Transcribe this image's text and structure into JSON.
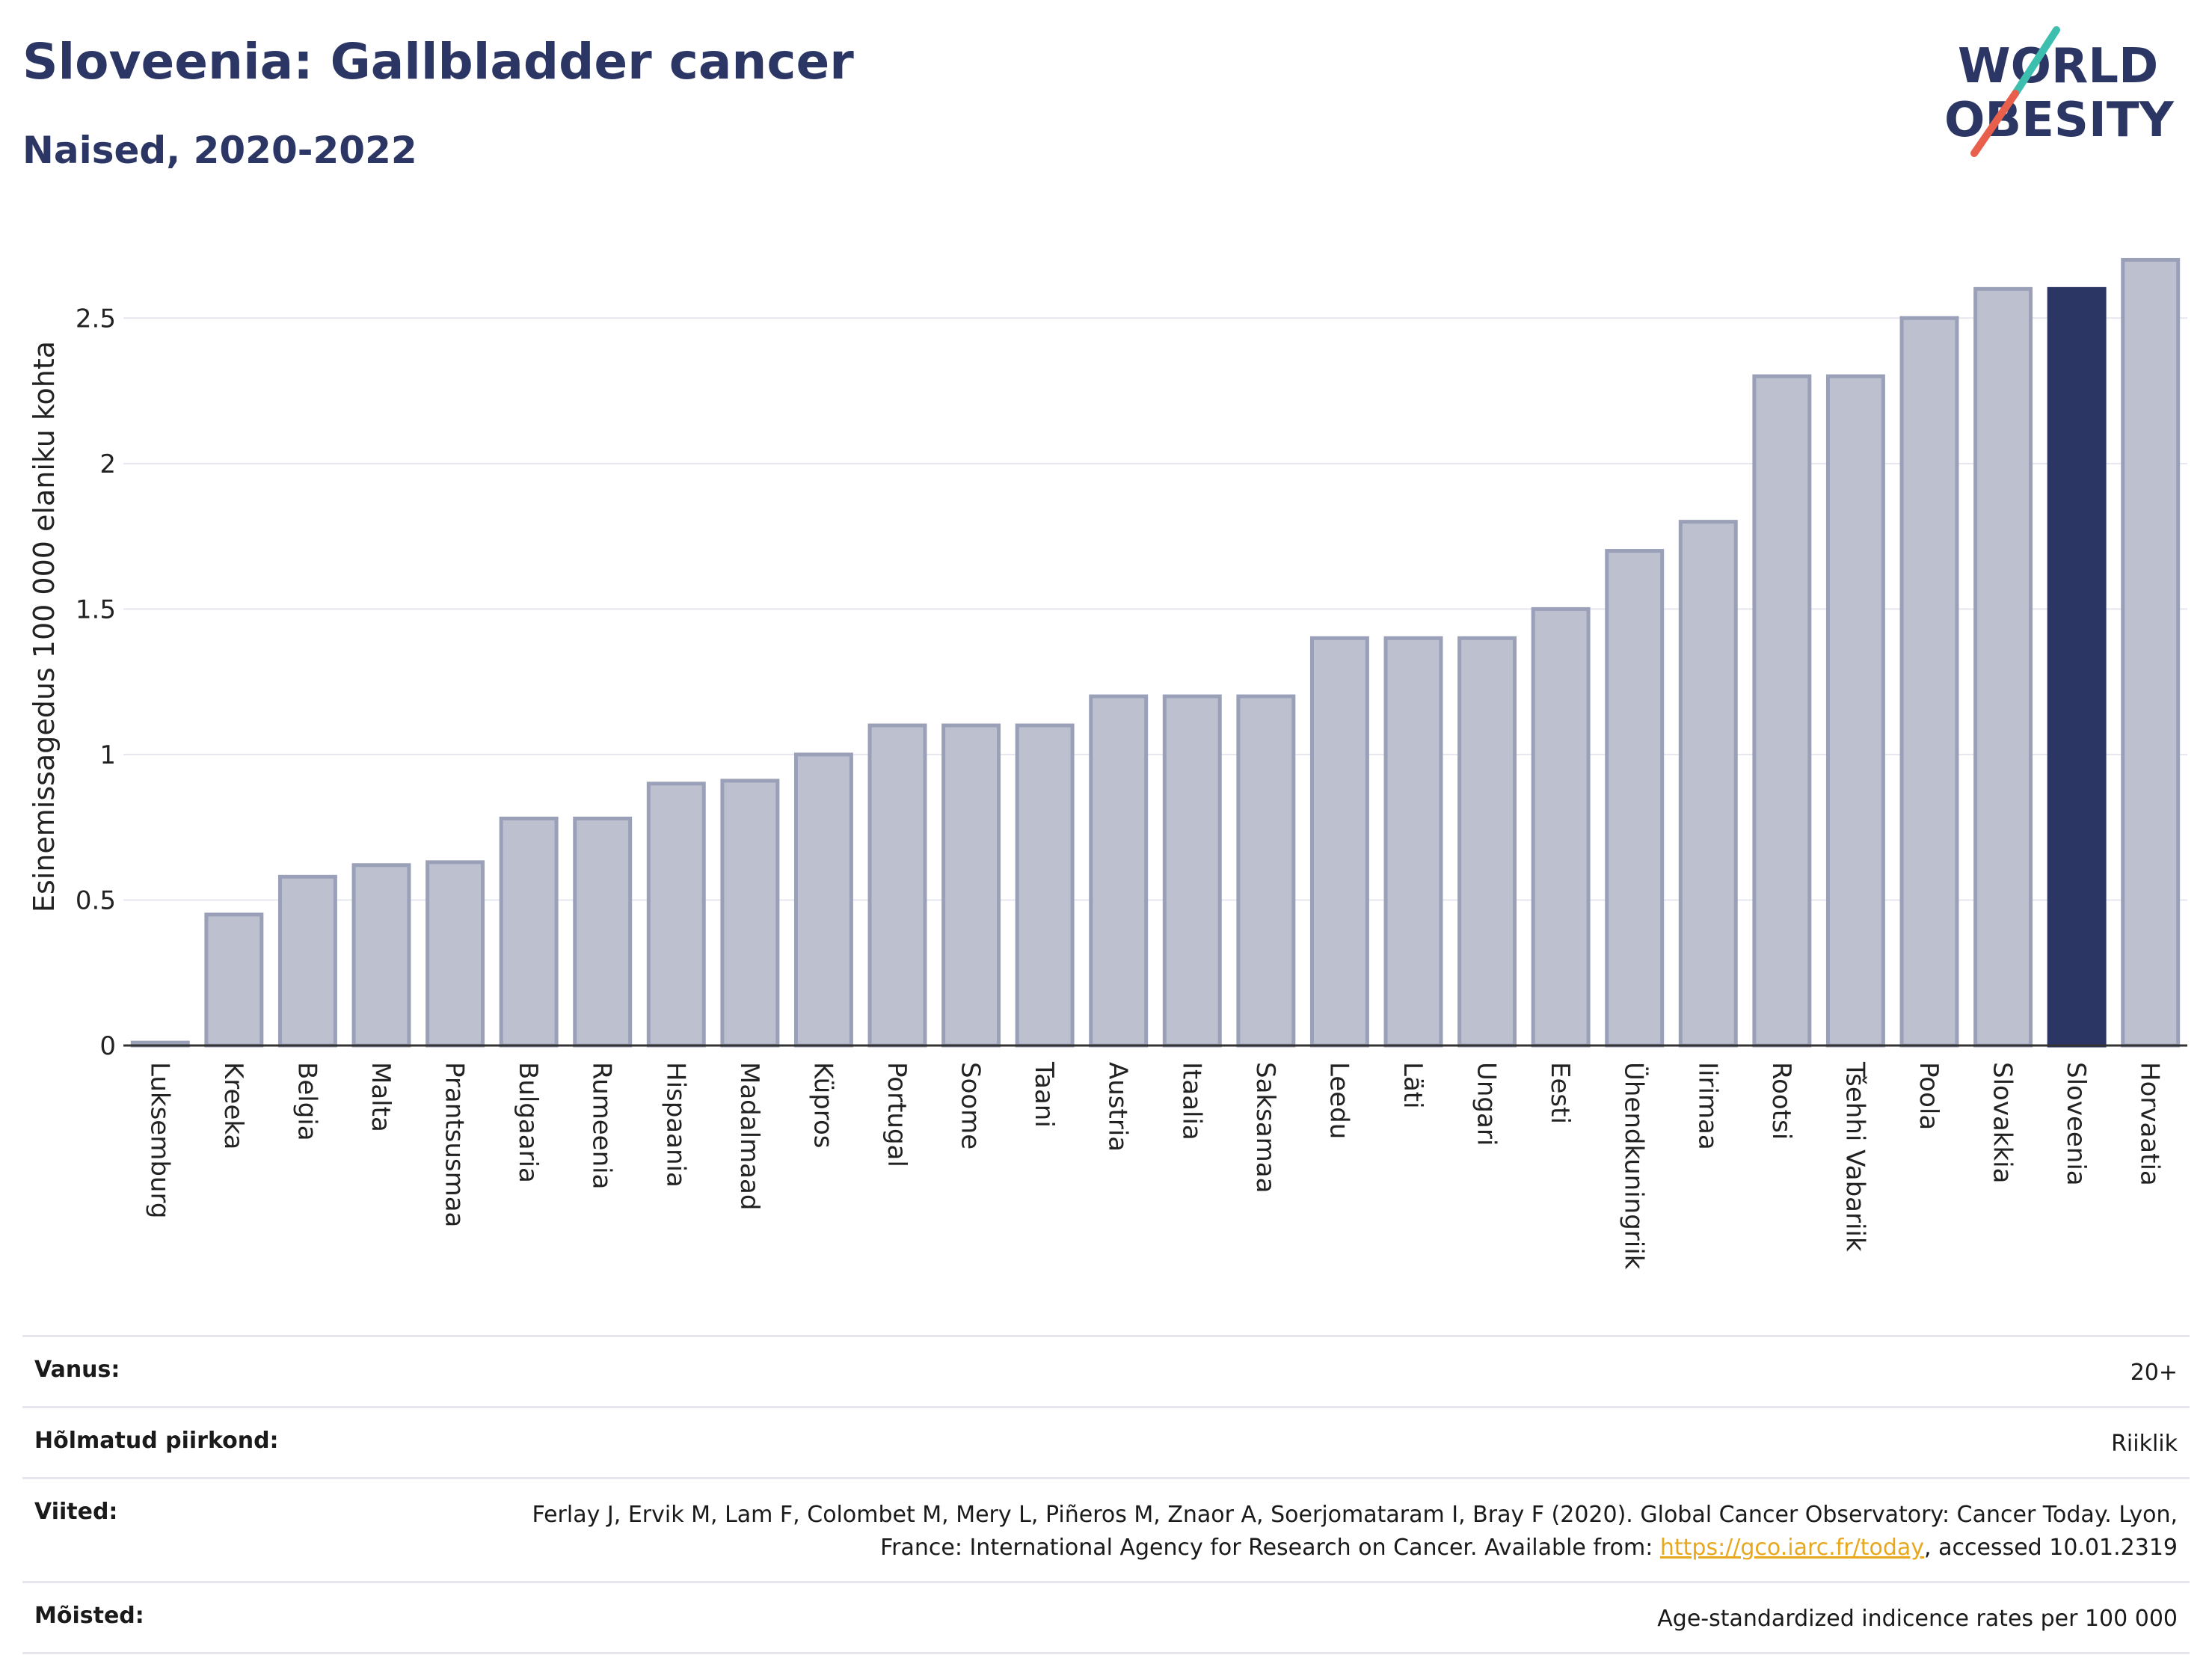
{
  "header": {
    "title": "Sloveenia: Gallbladder cancer",
    "subtitle": "Naised, 2020-2022"
  },
  "logo": {
    "line1": "WORLD",
    "line2": "OBESITY",
    "colors": {
      "text": "#2b3664",
      "slash_teal": "#3dbfb0",
      "slash_red": "#e8604c"
    }
  },
  "chart_data": {
    "type": "bar",
    "ylabel": "Esinemissagedus 100 000 elaniku kohta",
    "ylim": [
      0,
      2.75
    ],
    "yticks": [
      0,
      0.5,
      1,
      1.5,
      2,
      2.5
    ],
    "ytick_labels": [
      "0",
      "0.5",
      "1",
      "1.5",
      "2",
      "2.5"
    ],
    "grid": true,
    "highlight": "Sloveenia",
    "colors": {
      "bar": "#bcc0cf",
      "bar_edge": "#9aa0b8",
      "highlight": "#2b3664"
    },
    "categories": [
      "Luksemburg",
      "Kreeka",
      "Belgia",
      "Malta",
      "Prantsusmaa",
      "Bulgaaria",
      "Rumeenia",
      "Hispaania",
      "Madalmaad",
      "Küpros",
      "Portugal",
      "Soome",
      "Taani",
      "Austria",
      "Itaalia",
      "Saksamaa",
      "Leedu",
      "Läti",
      "Ungari",
      "Eesti",
      "Ühendkuningriik",
      "Iirimaa",
      "Rootsi",
      "Tšehhi Vabariik",
      "Poola",
      "Slovakkia",
      "Sloveenia",
      "Horvaatia"
    ],
    "values": [
      0.01,
      0.45,
      0.58,
      0.62,
      0.63,
      0.78,
      0.78,
      0.9,
      0.91,
      1.0,
      1.1,
      1.1,
      1.1,
      1.2,
      1.2,
      1.2,
      1.4,
      1.4,
      1.4,
      1.5,
      1.7,
      1.8,
      2.3,
      2.3,
      2.5,
      2.6,
      2.6,
      2.7
    ]
  },
  "info": {
    "rows": [
      {
        "label": "Vanus:",
        "value": "20+"
      },
      {
        "label": "Hõlmatud piirkond:",
        "value": "Riiklik"
      },
      {
        "label": "Viited:",
        "value_before": "Ferlay J, Ervik M, Lam F, Colombet M, Mery L, Piñeros M, Znaor A, Soerjomataram I, Bray F (2020). Global Cancer Observatory: Cancer Today. Lyon, France: International Agency for Research on Cancer. Available from: ",
        "link": "https://gco.iarc.fr/today",
        "value_after": ", accessed 10.01.2319"
      },
      {
        "label": "Mõisted:",
        "value": "Age-standardized indicence rates per 100 000"
      }
    ]
  }
}
